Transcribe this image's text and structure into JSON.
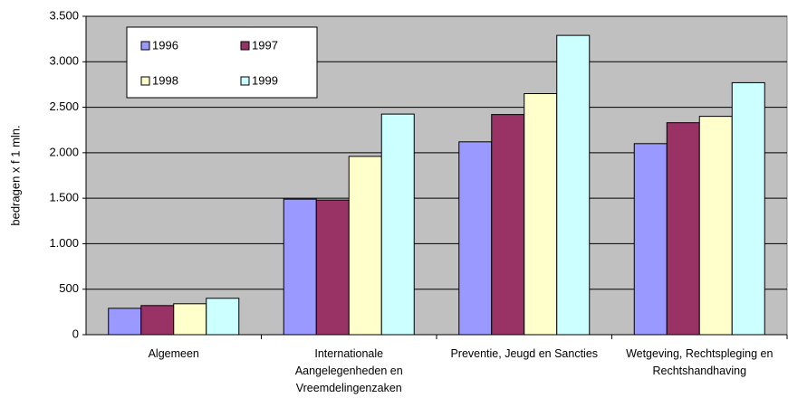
{
  "chart_data": {
    "type": "bar",
    "y_label": "bedragen x f 1 mln.",
    "categories": [
      "Algemeen",
      "Internationale Aangelegenheden en Vreemdelingenzaken",
      "Preventie, Jeugd en Sancties",
      "Wetgeving, Rechtspleging en Rechtshandhaving"
    ],
    "series": [
      {
        "name": "1996",
        "color": "#9999ff",
        "values": [
          290,
          1490,
          2120,
          2100
        ]
      },
      {
        "name": "1997",
        "color": "#993366",
        "values": [
          320,
          1480,
          2420,
          2330
        ]
      },
      {
        "name": "1998",
        "color": "#ffffcc",
        "values": [
          340,
          1960,
          2650,
          2400
        ]
      },
      {
        "name": "1999",
        "color": "#ccffff",
        "values": [
          400,
          2425,
          3290,
          2770
        ]
      }
    ],
    "ylim": [
      0,
      3500
    ],
    "yticks": [
      0,
      500,
      {
        "value": 1000,
        "label": "1.000"
      },
      {
        "value": 1500,
        "label": "1.500"
      },
      {
        "value": 2000,
        "label": "2.000"
      },
      {
        "value": 2500,
        "label": "2.500"
      },
      {
        "value": 3000,
        "label": "3.000"
      },
      {
        "value": 3500,
        "label": "3.500"
      }
    ],
    "grid": true,
    "legend": "upper-left",
    "plot_background": "#c0c0c0"
  }
}
